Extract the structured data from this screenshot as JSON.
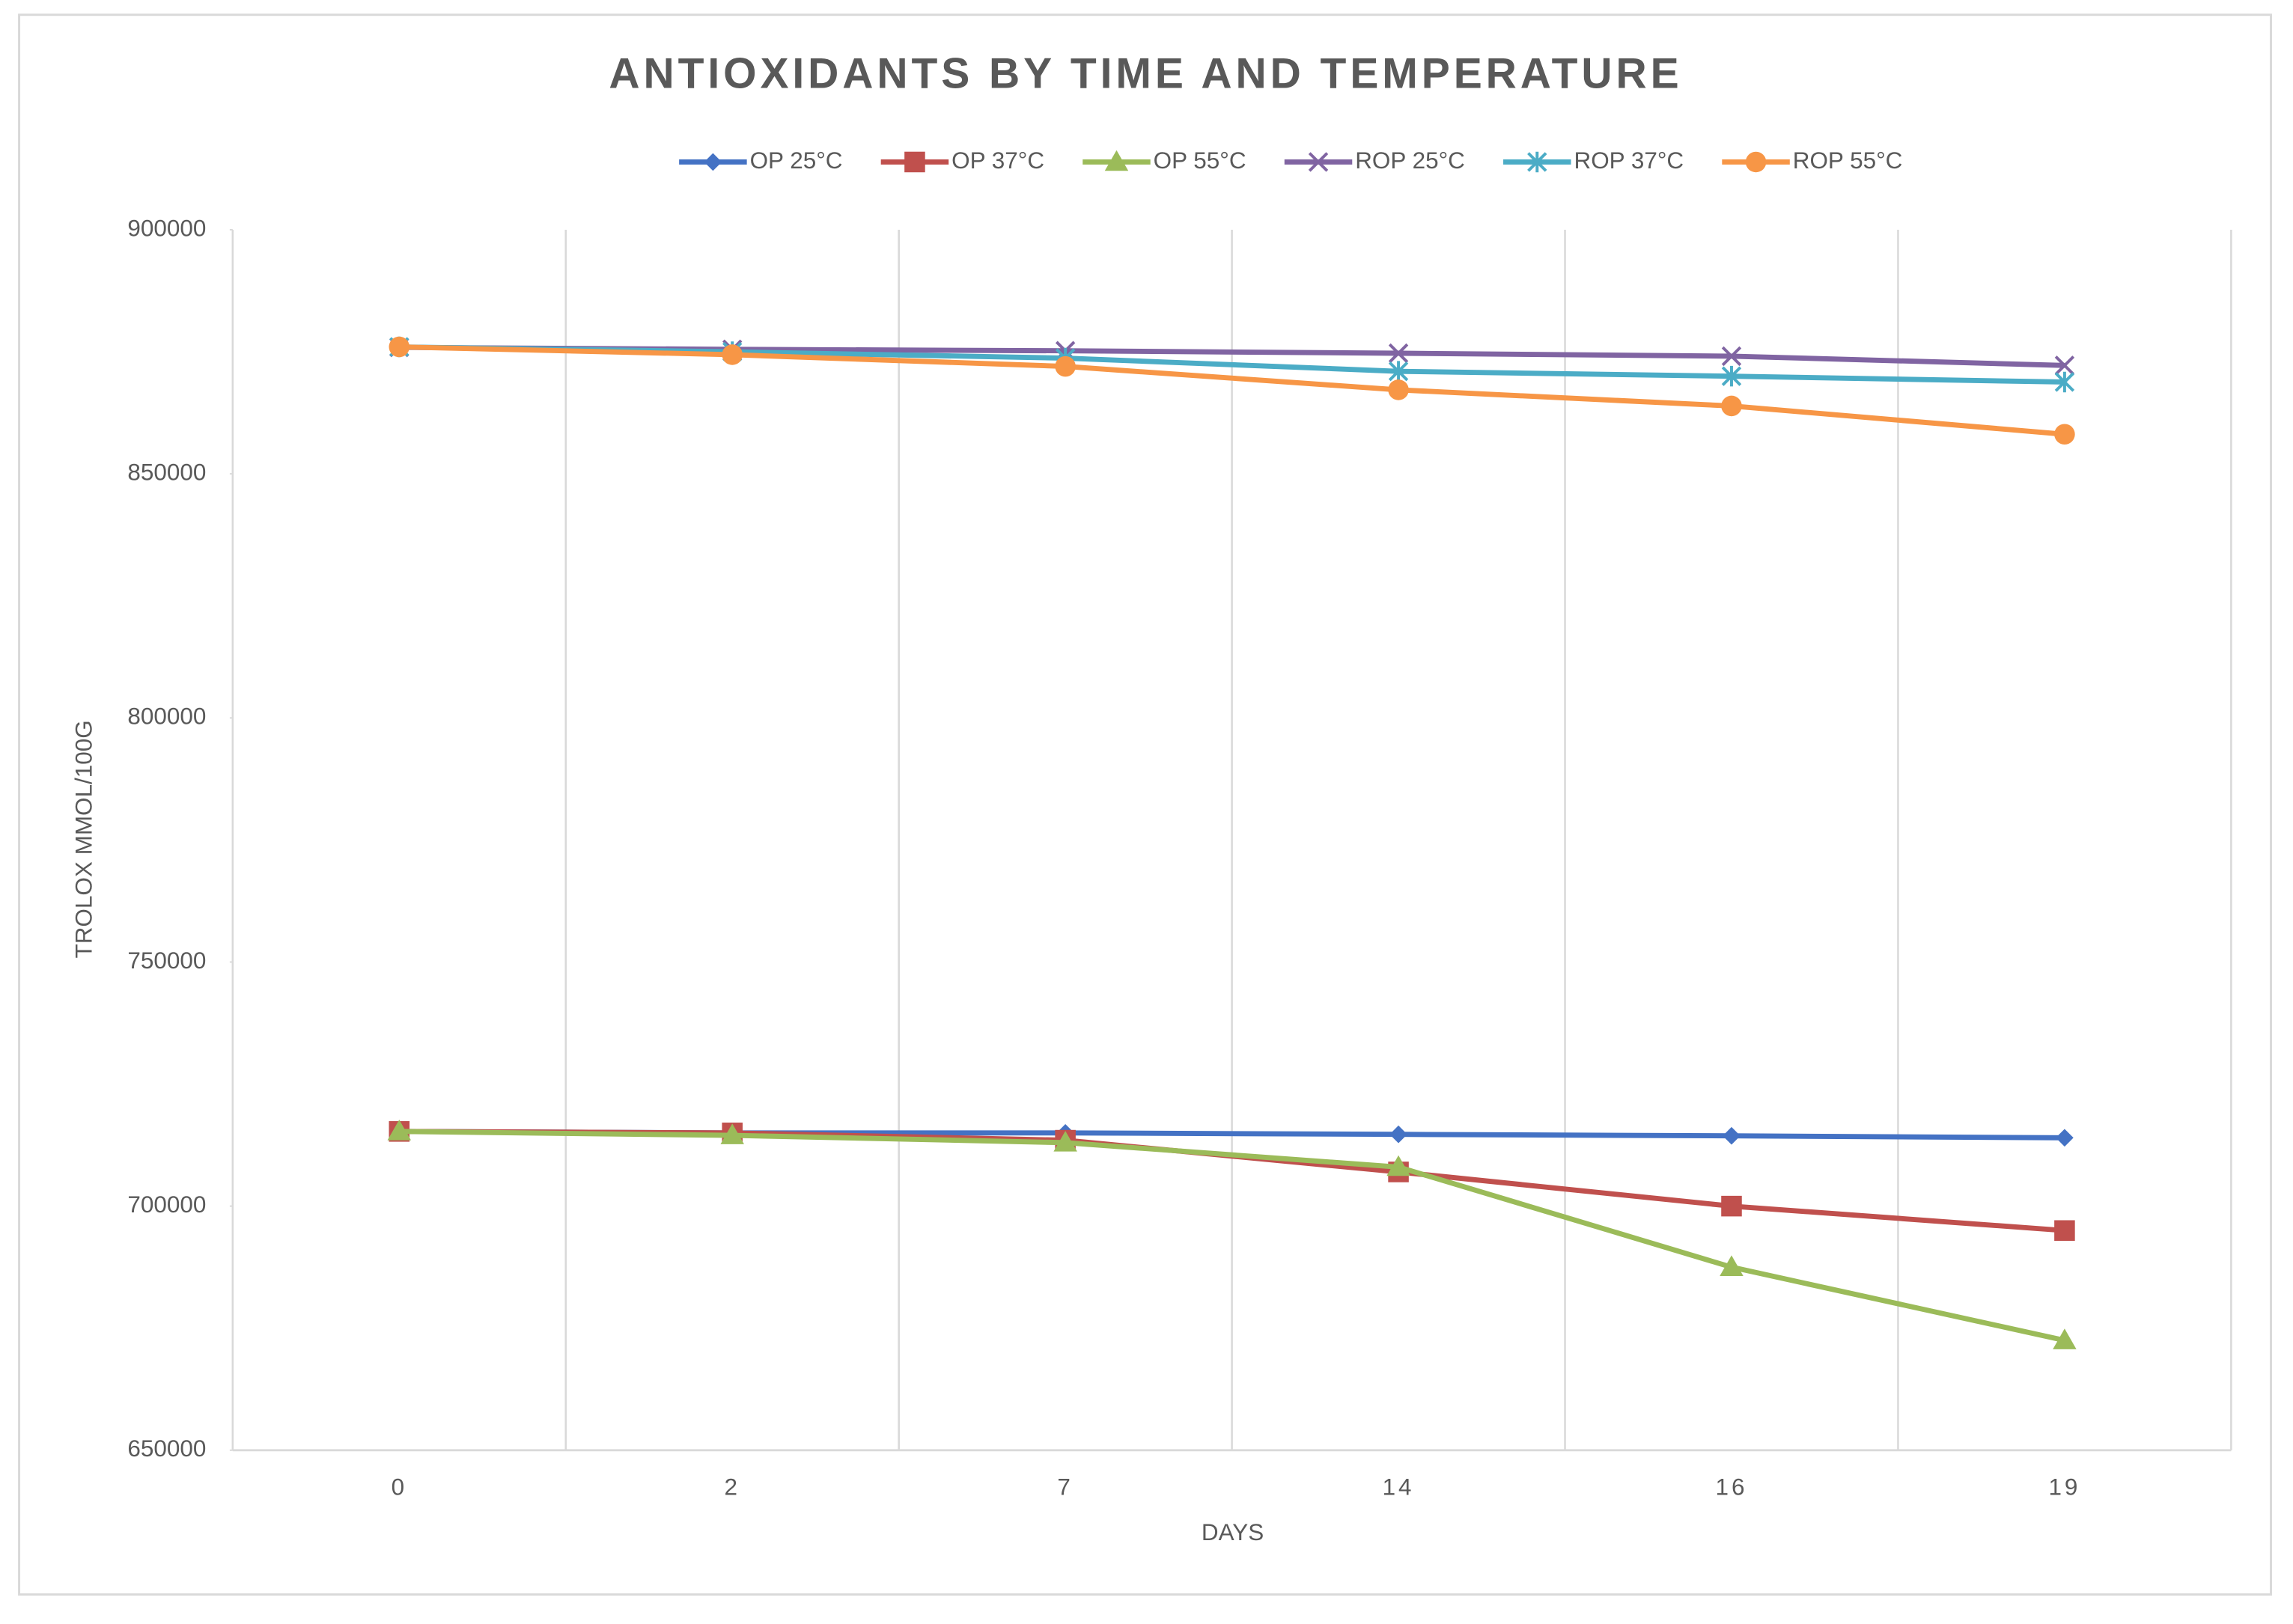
{
  "chart_data": {
    "type": "line",
    "title": "ANTIOXIDANTS BY TIME AND TEMPERATURE",
    "x_label": "DAYS",
    "y_label": "TROLOX MMOL/100G",
    "categories": [
      "0",
      "2",
      "7",
      "14",
      "16",
      "19"
    ],
    "ylim": [
      650000,
      900000
    ],
    "yticks": [
      650000,
      700000,
      750000,
      800000,
      850000,
      900000
    ],
    "grid": true,
    "legend": "top",
    "series": [
      {
        "name": "OP 25°C",
        "color": "#4472c4",
        "marker": "diamond",
        "values": [
          715300,
          715000,
          715000,
          714700,
          714400,
          714000
        ]
      },
      {
        "name": "OP 37°C",
        "color": "#c0504d",
        "marker": "square",
        "values": [
          715300,
          715000,
          713500,
          707000,
          700000,
          695000
        ]
      },
      {
        "name": "OP 55°C",
        "color": "#9bbb59",
        "marker": "triangle",
        "values": [
          715300,
          714500,
          713000,
          708000,
          687500,
          672500
        ]
      },
      {
        "name": "ROP 25°C",
        "color": "#8064a2",
        "marker": "x",
        "values": [
          875900,
          875500,
          875200,
          874700,
          874100,
          872200
        ]
      },
      {
        "name": "ROP 37°C",
        "color": "#4bacc6",
        "marker": "star",
        "values": [
          876000,
          875000,
          873700,
          871000,
          870000,
          868800
        ]
      },
      {
        "name": "ROP 55°C",
        "color": "#f79646",
        "marker": "circle",
        "values": [
          876000,
          874400,
          872000,
          867200,
          863900,
          858100
        ]
      }
    ]
  }
}
